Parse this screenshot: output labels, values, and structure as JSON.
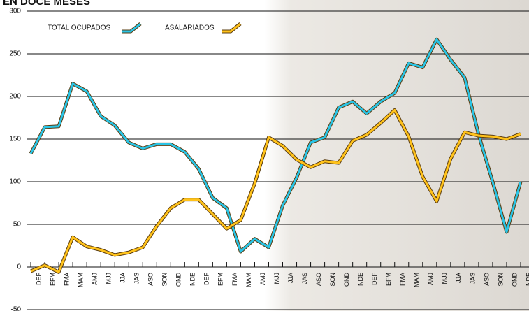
{
  "chart_data": {
    "type": "line",
    "title": "EN DOCE MESES",
    "categories": [
      "DEF",
      "EFM",
      "FMA",
      "MAM",
      "AMJ",
      "MJJ",
      "JJA",
      "JAS",
      "ASO",
      "SON",
      "OND",
      "NDE",
      "DEF",
      "EFM",
      "FMA",
      "MAM",
      "AMJ",
      "MJJ",
      "JJA",
      "JAS",
      "ASO",
      "SON",
      "OND",
      "NDE",
      "DEF",
      "EFM",
      "FMA",
      "MAM",
      "AMJ",
      "MJJ",
      "JJA",
      "JAS",
      "ASO",
      "SON",
      "OND",
      "NDE"
    ],
    "series": [
      {
        "name": "TOTAL OCUPADOS",
        "color": "#29c4e6",
        "values": [
          133,
          164,
          165,
          215,
          206,
          177,
          166,
          146,
          139,
          144,
          144,
          135,
          115,
          81,
          69,
          18,
          33,
          23,
          72,
          105,
          146,
          152,
          187,
          194,
          180,
          194,
          204,
          239,
          234,
          267,
          243,
          222,
          155,
          100,
          41,
          100
        ]
      },
      {
        "name": "ASALARIADOS",
        "color": "#ffc21a",
        "values": [
          -5,
          2,
          -6,
          35,
          24,
          20,
          14,
          17,
          23,
          48,
          69,
          79,
          79,
          62,
          45,
          55,
          98,
          152,
          142,
          126,
          117,
          124,
          122,
          148,
          155,
          169,
          184,
          153,
          106,
          77,
          127,
          158,
          154,
          153,
          150,
          156
        ]
      }
    ],
    "ylim": [
      -50,
      300
    ],
    "yticks": [
      -50,
      0,
      50,
      100,
      150,
      200,
      250,
      300
    ],
    "grid": true,
    "legend": "top-left"
  }
}
